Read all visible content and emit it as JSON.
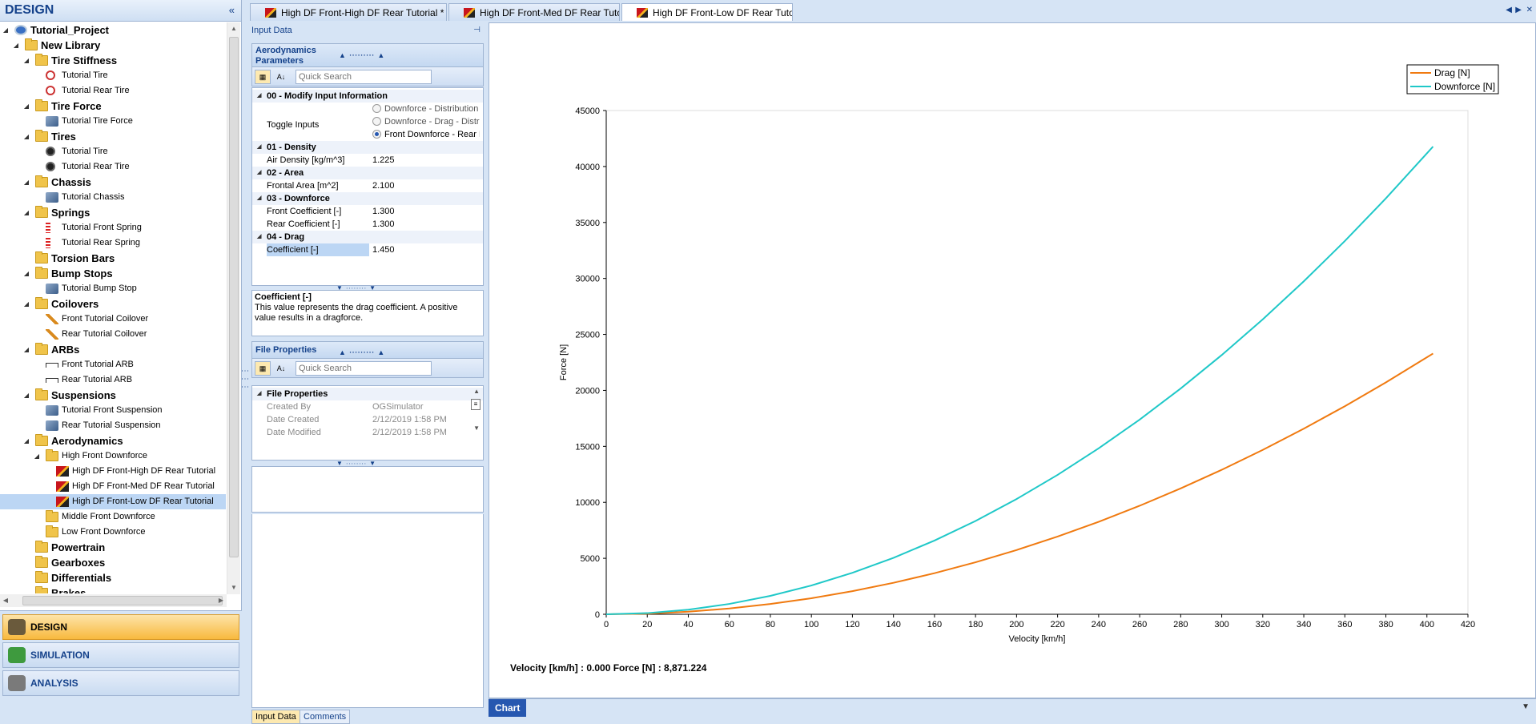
{
  "left_panel": {
    "title": "DESIGN",
    "collapse_icon": "«"
  },
  "tree": [
    {
      "label": "Tutorial_Project",
      "level": 0,
      "icon": "project-icon",
      "bold": true,
      "expanded": true
    },
    {
      "label": "New Library",
      "level": 1,
      "icon": "folder-icon",
      "bold": true,
      "expanded": true
    },
    {
      "label": "Tire Stiffness",
      "level": 2,
      "icon": "folder-icon",
      "bold": true,
      "expanded": true
    },
    {
      "label": "Tutorial Tire",
      "level": 3,
      "icon": "tire-icon"
    },
    {
      "label": "Tutorial Rear Tire",
      "level": 3,
      "icon": "tire-icon"
    },
    {
      "label": "Tire Force",
      "level": 2,
      "icon": "folder-icon",
      "bold": true,
      "expanded": true
    },
    {
      "label": "Tutorial Tire Force",
      "level": 3,
      "icon": "tire-force-icon"
    },
    {
      "label": "Tires",
      "level": 2,
      "icon": "folder-icon",
      "bold": true,
      "expanded": true
    },
    {
      "label": "Tutorial Tire",
      "level": 3,
      "icon": "tire-black-icon"
    },
    {
      "label": "Tutorial Rear Tire",
      "level": 3,
      "icon": "tire-black-icon"
    },
    {
      "label": "Chassis",
      "level": 2,
      "icon": "folder-icon",
      "bold": true,
      "expanded": true
    },
    {
      "label": "Tutorial Chassis",
      "level": 3,
      "icon": "chassis-icon"
    },
    {
      "label": "Springs",
      "level": 2,
      "icon": "folder-icon",
      "bold": true,
      "expanded": true
    },
    {
      "label": "Tutorial Front Spring",
      "level": 3,
      "icon": "spring-icon"
    },
    {
      "label": "Tutorial Rear Spring",
      "level": 3,
      "icon": "spring-icon"
    },
    {
      "label": "Torsion Bars",
      "level": 2,
      "icon": "folder-icon",
      "bold": true,
      "expanded": false
    },
    {
      "label": "Bump Stops",
      "level": 2,
      "icon": "folder-icon",
      "bold": true,
      "expanded": true
    },
    {
      "label": "Tutorial Bump Stop",
      "level": 3,
      "icon": "bump-stop-icon"
    },
    {
      "label": "Coilovers",
      "level": 2,
      "icon": "folder-icon",
      "bold": true,
      "expanded": true
    },
    {
      "label": "Front Tutorial Coilover",
      "level": 3,
      "icon": "coilover-icon"
    },
    {
      "label": "Rear Tutorial Coilover",
      "level": 3,
      "icon": "coilover-icon"
    },
    {
      "label": "ARBs",
      "level": 2,
      "icon": "folder-icon",
      "bold": true,
      "expanded": true
    },
    {
      "label": "Front Tutorial ARB",
      "level": 3,
      "icon": "arb-icon"
    },
    {
      "label": "Rear Tutorial ARB",
      "level": 3,
      "icon": "arb-icon"
    },
    {
      "label": "Suspensions",
      "level": 2,
      "icon": "folder-icon",
      "bold": true,
      "expanded": true
    },
    {
      "label": "Tutorial Front Suspension",
      "level": 3,
      "icon": "suspension-icon"
    },
    {
      "label": "Rear Tutorial Suspension",
      "level": 3,
      "icon": "suspension-icon"
    },
    {
      "label": "Aerodynamics",
      "level": 2,
      "icon": "folder-icon",
      "bold": true,
      "expanded": true
    },
    {
      "label": "High Front Downforce",
      "level": 3,
      "icon": "folder-icon",
      "expanded": true
    },
    {
      "label": "High DF Front-High DF Rear Tutorial",
      "level": 4,
      "icon": "aero-icon"
    },
    {
      "label": "High DF Front-Med DF Rear Tutorial",
      "level": 4,
      "icon": "aero-icon"
    },
    {
      "label": "High DF Front-Low DF Rear Tutorial",
      "level": 4,
      "icon": "aero-icon",
      "selected": true
    },
    {
      "label": "Middle Front Downforce",
      "level": 3,
      "icon": "folder-icon"
    },
    {
      "label": "Low Front Downforce",
      "level": 3,
      "icon": "folder-icon"
    },
    {
      "label": "Powertrain",
      "level": 2,
      "icon": "folder-icon",
      "bold": true
    },
    {
      "label": "Gearboxes",
      "level": 2,
      "icon": "folder-icon",
      "bold": true
    },
    {
      "label": "Differentials",
      "level": 2,
      "icon": "folder-icon",
      "bold": true
    },
    {
      "label": "Brakes",
      "level": 2,
      "icon": "folder-icon",
      "bold": true
    }
  ],
  "nav": [
    {
      "label": "DESIGN",
      "icon": "design-icon",
      "active": true
    },
    {
      "label": "SIMULATION",
      "icon": "simulation-icon"
    },
    {
      "label": "ANALYSIS",
      "icon": "analysis-icon"
    }
  ],
  "doc_tabs": [
    {
      "label": "High DF Front-High DF Rear Tutorial *",
      "active": false
    },
    {
      "label": "High DF Front-Med DF Rear Tutorial",
      "active": false
    },
    {
      "label": "High DF Front-Low DF Rear Tutorial",
      "active": true
    }
  ],
  "input_panel": {
    "title": "Input Data",
    "pin_icon": "⊣",
    "aero_header": "Aerodynamics Parameters",
    "search_placeholder": "Quick Search",
    "categories": {
      "c0": "00 - Modify Input Information",
      "c1": "01 - Density",
      "c2": "02 - Area",
      "c3": "03 - Downforce",
      "c4": "04 - Drag"
    },
    "toggle_label": "Toggle Inputs",
    "toggle_options": [
      "Downforce - Distribution",
      "Downforce - Drag - Distribution",
      "Front Downforce - Rear Downforce"
    ],
    "toggle_selected": 2,
    "rows": {
      "density_label": "Air Density [kg/m^3]",
      "density_value": "1.225",
      "area_label": "Frontal Area [m^2]",
      "area_value": "2.100",
      "front_label": "Front Coefficient [-]",
      "front_value": "1.300",
      "rear_label": "Rear Coefficient [-]",
      "rear_value": "1.300",
      "drag_label": "Coefficient [-]",
      "drag_value": "1.450"
    },
    "desc_title": "Coefficient [-]",
    "desc_text": "This value represents the drag coefficient. A positive value results in a dragforce.",
    "file_header": "File Properties",
    "file_category": "File Properties",
    "file_rows": {
      "created_by_label": "Created By",
      "created_by_value": "OGSimulator",
      "date_created_label": "Date Created",
      "date_created_value": "2/12/2019 1:58 PM",
      "date_modified_label": "Date Modified",
      "date_modified_value": "2/12/2019 1:58 PM"
    },
    "bottom_tabs": [
      "Input Data",
      "Comments"
    ]
  },
  "chart_data": {
    "type": "line",
    "xlabel": "Velocity [km/h]",
    "ylabel": "Force [N]",
    "xlim": [
      0,
      420
    ],
    "ylim": [
      0,
      45000
    ],
    "xticks": [
      0,
      20,
      40,
      60,
      80,
      100,
      120,
      140,
      160,
      180,
      200,
      220,
      240,
      260,
      280,
      300,
      320,
      340,
      360,
      380,
      400,
      420
    ],
    "yticks": [
      0,
      5000,
      10000,
      15000,
      20000,
      25000,
      30000,
      35000,
      40000,
      45000
    ],
    "legend_placement": "top-right",
    "series": [
      {
        "name": "Drag [N]",
        "color": "#f07a10",
        "x": [
          0,
          20,
          40,
          60,
          80,
          100,
          120,
          140,
          160,
          180,
          200,
          220,
          240,
          260,
          280,
          300,
          320,
          340,
          360,
          380,
          403
        ],
        "values": [
          0,
          58,
          230,
          516,
          918,
          1434,
          2065,
          2811,
          3672,
          4647,
          5737,
          6941,
          8261,
          9695,
          11244,
          12907,
          14686,
          16579,
          18587,
          20709,
          23290
        ]
      },
      {
        "name": "Downforce [N]",
        "color": "#1fc8c8",
        "x": [
          0,
          20,
          40,
          60,
          80,
          100,
          120,
          140,
          160,
          180,
          200,
          220,
          240,
          260,
          280,
          300,
          320,
          340,
          360,
          380,
          403
        ],
        "values": [
          0,
          103,
          412,
          926,
          1647,
          2573,
          3705,
          5043,
          6587,
          8337,
          10292,
          12453,
          14820,
          17393,
          20172,
          23156,
          26346,
          29742,
          33343,
          37150,
          41780
        ]
      }
    ],
    "readout": "Velocity [km/h] : 0.000 Force [N] : 8,871.224"
  },
  "chart_tab": "Chart"
}
